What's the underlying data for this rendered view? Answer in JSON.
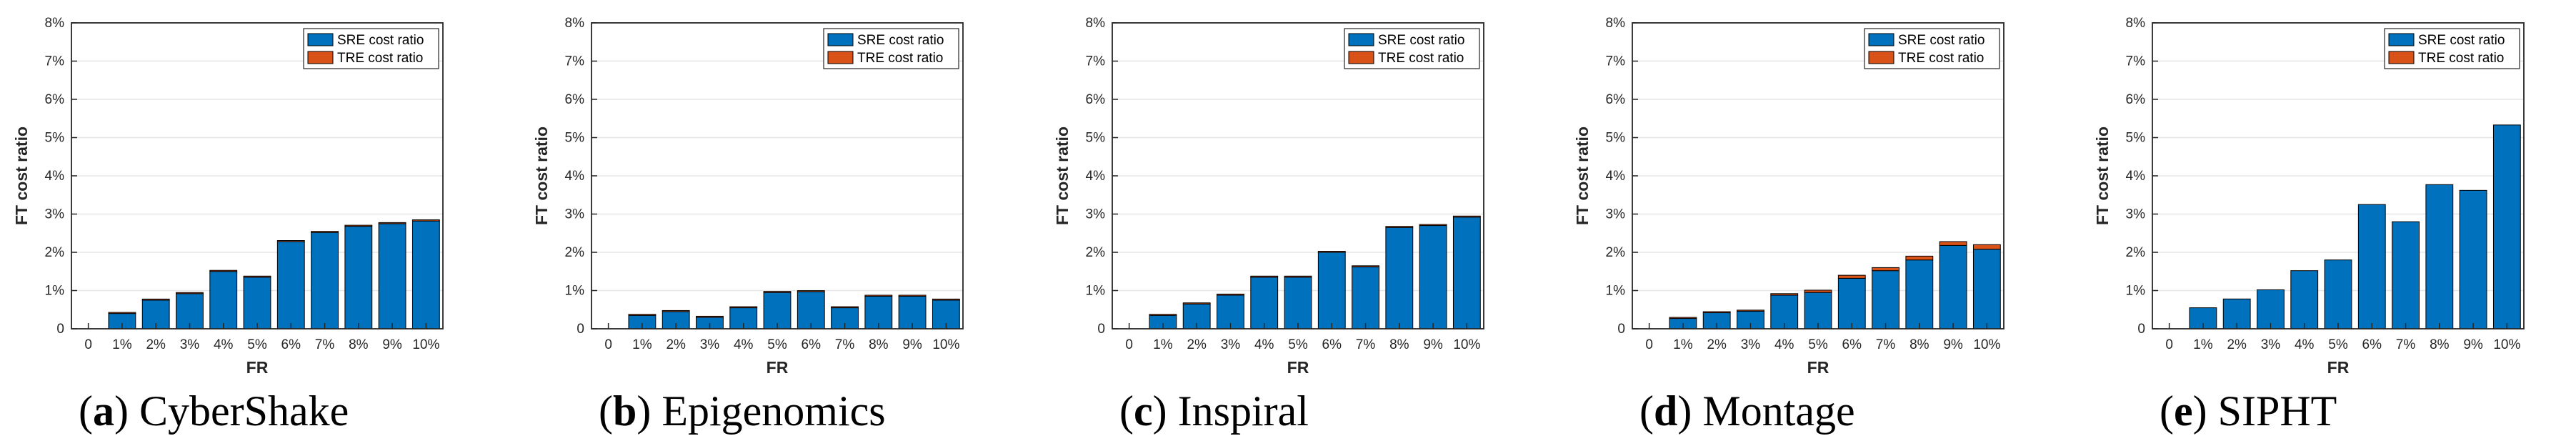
{
  "colors": {
    "sre": "#0072BD",
    "tre": "#D95319",
    "grid": "#E6E6E6",
    "axis": "#262626"
  },
  "legend": {
    "sre": "SRE cost ratio",
    "tre": "TRE cost ratio"
  },
  "chart_data": [
    {
      "type": "bar",
      "stacked": true,
      "title": "",
      "xlabel": "FR",
      "ylabel": "FT cost ratio",
      "categories": [
        "0",
        "1%",
        "2%",
        "3%",
        "4%",
        "5%",
        "6%",
        "7%",
        "8%",
        "9%",
        "10%"
      ],
      "yticks": [
        "0",
        "1%",
        "2%",
        "3%",
        "4%",
        "5%",
        "6%",
        "7%",
        "8%"
      ],
      "ylim": [
        0,
        8
      ],
      "series": [
        {
          "name": "SRE cost ratio",
          "values": [
            0,
            0.4,
            0.75,
            0.92,
            1.5,
            1.35,
            2.28,
            2.52,
            2.68,
            2.75,
            2.82
          ]
        },
        {
          "name": "TRE cost ratio",
          "values": [
            0,
            0.01,
            0.01,
            0.01,
            0.02,
            0.02,
            0.02,
            0.02,
            0.02,
            0.02,
            0.03
          ]
        }
      ],
      "caption": {
        "letter": "a",
        "name": "CyberShake"
      }
    },
    {
      "type": "bar",
      "stacked": true,
      "title": "",
      "xlabel": "FR",
      "ylabel": "FT cost ratio",
      "categories": [
        "0",
        "1%",
        "2%",
        "3%",
        "4%",
        "5%",
        "6%",
        "7%",
        "8%",
        "9%",
        "10%"
      ],
      "yticks": [
        "0",
        "1%",
        "2%",
        "3%",
        "4%",
        "5%",
        "6%",
        "7%",
        "8%"
      ],
      "ylim": [
        0,
        8
      ],
      "series": [
        {
          "name": "SRE cost ratio",
          "values": [
            0,
            0.35,
            0.45,
            0.3,
            0.55,
            0.95,
            0.97,
            0.55,
            0.85,
            0.85,
            0.75
          ]
        },
        {
          "name": "TRE cost ratio",
          "values": [
            0,
            0.01,
            0.01,
            0.01,
            0.01,
            0.01,
            0.01,
            0.01,
            0.01,
            0.01,
            0.01
          ]
        }
      ],
      "caption": {
        "letter": "b",
        "name": "Epigenomics"
      }
    },
    {
      "type": "bar",
      "stacked": true,
      "title": "",
      "xlabel": "FR",
      "ylabel": "FT cost ratio",
      "categories": [
        "0",
        "1%",
        "2%",
        "3%",
        "4%",
        "5%",
        "6%",
        "7%",
        "8%",
        "9%",
        "10%"
      ],
      "yticks": [
        "0",
        "1%",
        "2%",
        "3%",
        "4%",
        "5%",
        "6%",
        "7%",
        "8%"
      ],
      "ylim": [
        0,
        8
      ],
      "series": [
        {
          "name": "SRE cost ratio",
          "values": [
            0,
            0.35,
            0.65,
            0.88,
            1.35,
            1.35,
            2.0,
            1.62,
            2.65,
            2.7,
            2.92
          ]
        },
        {
          "name": "TRE cost ratio",
          "values": [
            0,
            0.01,
            0.01,
            0.01,
            0.01,
            0.01,
            0.01,
            0.01,
            0.02,
            0.02,
            0.02
          ]
        }
      ],
      "caption": {
        "letter": "c",
        "name": "Inspiral"
      }
    },
    {
      "type": "bar",
      "stacked": true,
      "title": "",
      "xlabel": "FR",
      "ylabel": "FT cost ratio",
      "categories": [
        "0",
        "1%",
        "2%",
        "3%",
        "4%",
        "5%",
        "6%",
        "7%",
        "8%",
        "9%",
        "10%"
      ],
      "yticks": [
        "0",
        "1%",
        "2%",
        "3%",
        "4%",
        "5%",
        "6%",
        "7%",
        "8%"
      ],
      "ylim": [
        0,
        8
      ],
      "series": [
        {
          "name": "SRE cost ratio",
          "values": [
            0,
            0.27,
            0.42,
            0.46,
            0.88,
            0.95,
            1.32,
            1.52,
            1.8,
            2.18,
            2.08
          ]
        },
        {
          "name": "TRE cost ratio",
          "values": [
            0,
            0.01,
            0.02,
            0.02,
            0.04,
            0.06,
            0.08,
            0.08,
            0.1,
            0.1,
            0.12
          ]
        }
      ],
      "caption": {
        "letter": "d",
        "name": "Montage"
      }
    },
    {
      "type": "bar",
      "stacked": true,
      "title": "",
      "xlabel": "FR",
      "ylabel": "FT cost ratio",
      "categories": [
        "0",
        "1%",
        "2%",
        "3%",
        "4%",
        "5%",
        "6%",
        "7%",
        "8%",
        "9%",
        "10%"
      ],
      "yticks": [
        "0",
        "1%",
        "2%",
        "3%",
        "4%",
        "5%",
        "6%",
        "7%",
        "8%"
      ],
      "ylim": [
        0,
        8
      ],
      "series": [
        {
          "name": "SRE cost ratio",
          "values": [
            0,
            0.55,
            0.78,
            1.02,
            1.52,
            1.8,
            3.25,
            2.8,
            3.77,
            3.62,
            5.33
          ]
        },
        {
          "name": "TRE cost ratio",
          "values": [
            0,
            0.0,
            0.0,
            0.0,
            0.0,
            0.0,
            0.0,
            0.0,
            0.0,
            0.0,
            0.0
          ]
        }
      ],
      "caption": {
        "letter": "e",
        "name": "SIPHT"
      }
    }
  ]
}
